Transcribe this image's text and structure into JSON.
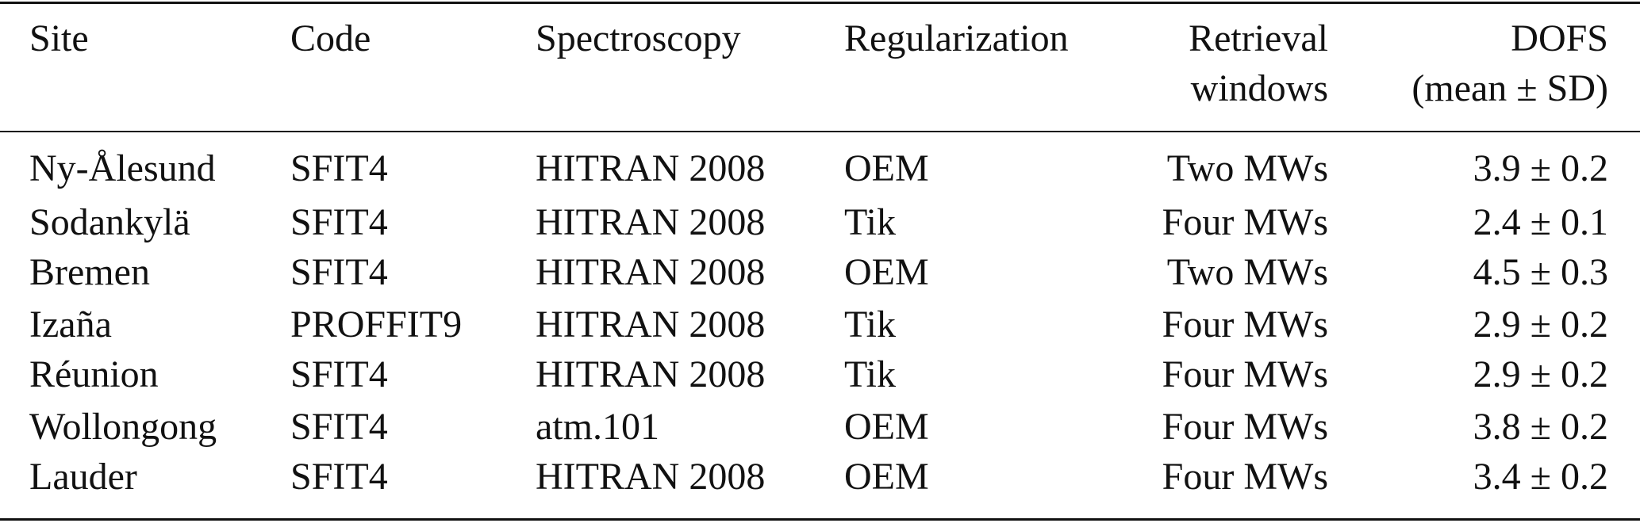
{
  "table": {
    "header": [
      [
        "Site"
      ],
      [
        "Code"
      ],
      [
        "Spectroscopy"
      ],
      [
        "Regularization"
      ],
      [
        "Retrieval",
        "windows"
      ],
      [
        "DOFS",
        "(mean ± SD)"
      ]
    ],
    "rows": [
      [
        "Ny-Ålesund",
        "SFIT4",
        "HITRAN 2008",
        "OEM",
        "Two MWs",
        "3.9 ± 0.2"
      ],
      [
        "Sodankylä",
        "SFIT4",
        "HITRAN 2008",
        "Tik",
        "Four MWs",
        "2.4 ± 0.1"
      ],
      [
        "Bremen",
        "SFIT4",
        "HITRAN 2008",
        "OEM",
        "Two MWs",
        "4.5 ± 0.3"
      ],
      [
        "Izaña",
        "PROFFIT9",
        "HITRAN 2008",
        "Tik",
        "Four MWs",
        "2.9 ± 0.2"
      ],
      [
        "Réunion",
        "SFIT4",
        "HITRAN 2008",
        "Tik",
        "Four MWs",
        "2.9 ± 0.2"
      ],
      [
        "Wollongong",
        "SFIT4",
        "atm.101",
        "OEM",
        "Four MWs",
        "3.8 ± 0.2"
      ],
      [
        "Lauder",
        "SFIT4",
        "HITRAN 2008",
        "OEM",
        "Four MWs",
        "3.4 ± 0.2"
      ]
    ]
  }
}
